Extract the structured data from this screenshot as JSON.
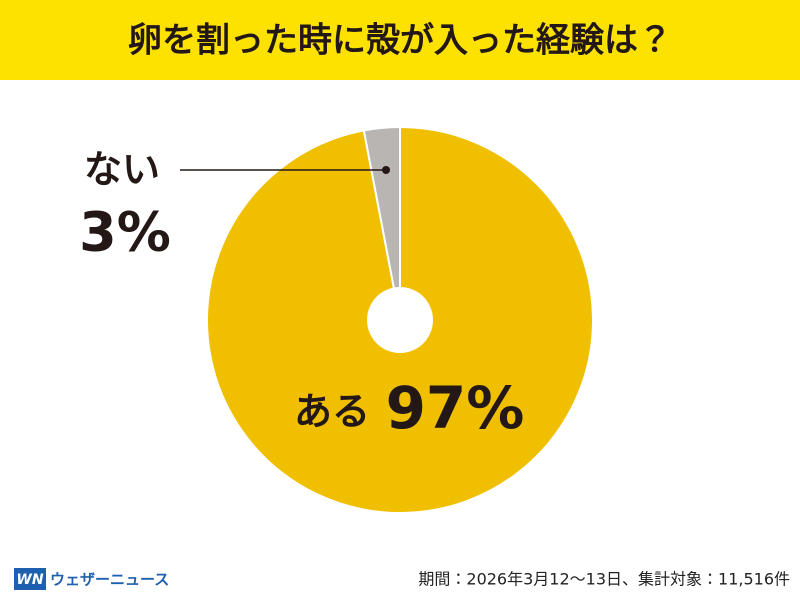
{
  "chart_data": {
    "type": "pie",
    "title": "卵を割った時に殻が入った経験は？",
    "categories": [
      "ある",
      "ない"
    ],
    "values": [
      97,
      3
    ],
    "value_labels": [
      "97%",
      "3%"
    ],
    "colors": [
      "#efbf00",
      "#b9b5b2"
    ]
  },
  "footer": {
    "logo": "WN",
    "brand": "ウェザーニュース",
    "note": "期間：2026年3月12～13日、集計対象：11,516件"
  }
}
